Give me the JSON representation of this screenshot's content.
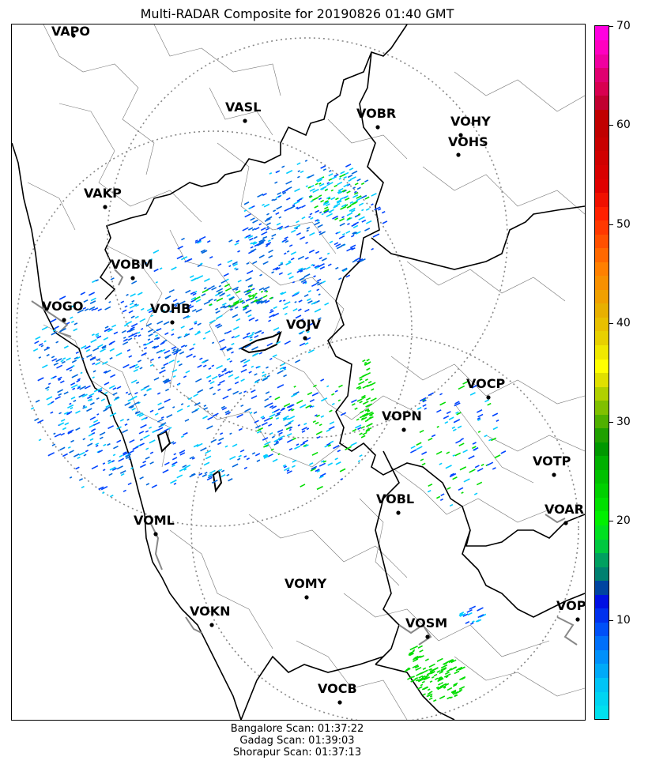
{
  "title": "Multi-RADAR Composite for 20190826 01:40 GMT",
  "stations": [
    {
      "id": "VAPO"
    },
    {
      "id": "VASL"
    },
    {
      "id": "VOBR"
    },
    {
      "id": "VOHY"
    },
    {
      "id": "VOHS"
    },
    {
      "id": "VAKP"
    },
    {
      "id": "VOBM"
    },
    {
      "id": "VOGO"
    },
    {
      "id": "VOHB"
    },
    {
      "id": "VOJV"
    },
    {
      "id": "VOCP"
    },
    {
      "id": "VOPN"
    },
    {
      "id": "VOTP"
    },
    {
      "id": "VOBL"
    },
    {
      "id": "VOAR"
    },
    {
      "id": "VOML"
    },
    {
      "id": "VOMY"
    },
    {
      "id": "VOKN"
    },
    {
      "id": "VOSM"
    },
    {
      "id": "VOPC"
    },
    {
      "id": "VOCB"
    }
  ],
  "colorbar": {
    "ticks": [
      "10",
      "20",
      "30",
      "40",
      "50",
      "60",
      "70"
    ],
    "min": 0,
    "max": 70,
    "colors": [
      "#00e0ee",
      "#00d4f2",
      "#00c4f6",
      "#00aaf8",
      "#0090fa",
      "#0070fa",
      "#0050f8",
      "#0030ee",
      "#0010e4",
      "#0044a0",
      "#008070",
      "#00a060",
      "#00c840",
      "#00e020",
      "#00f000",
      "#00e000",
      "#00d000",
      "#00c000",
      "#00b000",
      "#009800",
      "#20a000",
      "#50b000",
      "#80c000",
      "#b0d000",
      "#e0e000",
      "#ffff00",
      "#f0e800",
      "#e8d000",
      "#e8c000",
      "#e8b000",
      "#f0a000",
      "#f89000",
      "#ff8000",
      "#ff6800",
      "#ff5000",
      "#ff3800",
      "#ff2000",
      "#f01000",
      "#e00000",
      "#d80000",
      "#d00000",
      "#c80000",
      "#c00000",
      "#c00000",
      "#c00030",
      "#d80050",
      "#e00070",
      "#f000a0",
      "#ff00c0",
      "#ff00e0"
    ]
  },
  "scan_info": [
    "Bangalore Scan: 01:37:22",
    "Gadag Scan: 01:39:03",
    "Shorapur Scan: 01:37:13"
  ],
  "radar_coverage": [
    {
      "site": "Gadag"
    },
    {
      "site": "Shorapur"
    },
    {
      "site": "Bangalore"
    }
  ],
  "echo_colors": [
    "#0044ff",
    "#00ccff",
    "#00dd00",
    "#0066dd"
  ]
}
